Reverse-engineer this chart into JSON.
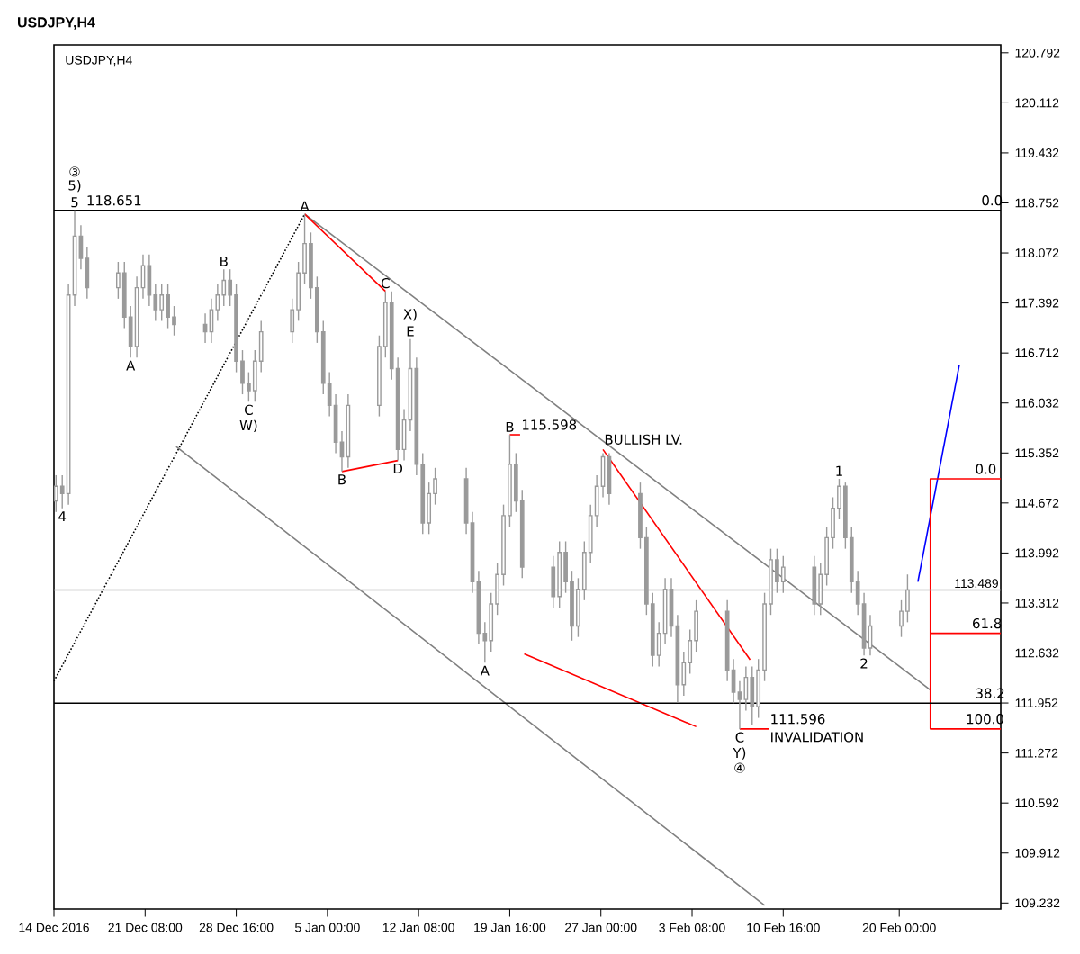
{
  "chart_data": {
    "type": "candlestick",
    "title": "USDJPY,H4",
    "color": "#9a9a9a",
    "x": [
      "2016-12-14T04:00",
      "2016-12-14T16:00",
      "2016-12-15T04:00",
      "2016-12-15T16:00",
      "2016-12-16T04:00",
      "2016-12-16T16:00",
      "2016-12-19T04:00",
      "2016-12-19T16:00",
      "2016-12-20T04:00",
      "2016-12-20T16:00",
      "2016-12-21T04:00",
      "2016-12-21T16:00",
      "2016-12-22T04:00",
      "2016-12-22T16:00",
      "2016-12-23T04:00",
      "2016-12-23T16:00",
      "2016-12-26T04:00",
      "2016-12-26T16:00",
      "2016-12-27T04:00",
      "2016-12-27T16:00",
      "2016-12-28T04:00",
      "2016-12-28T16:00",
      "2016-12-29T04:00",
      "2016-12-29T16:00",
      "2016-12-30T04:00",
      "2016-12-30T16:00",
      "2017-01-02T04:00",
      "2017-01-02T16:00",
      "2017-01-03T04:00",
      "2017-01-03T16:00",
      "2017-01-04T04:00",
      "2017-01-04T16:00",
      "2017-01-05T04:00",
      "2017-01-05T16:00",
      "2017-01-06T04:00",
      "2017-01-06T16:00",
      "2017-01-09T04:00",
      "2017-01-09T16:00",
      "2017-01-10T04:00",
      "2017-01-10T16:00",
      "2017-01-11T04:00",
      "2017-01-11T16:00",
      "2017-01-12T04:00",
      "2017-01-12T16:00",
      "2017-01-13T04:00",
      "2017-01-13T16:00",
      "2017-01-16T04:00",
      "2017-01-16T16:00",
      "2017-01-17T04:00",
      "2017-01-17T16:00",
      "2017-01-18T04:00",
      "2017-01-18T16:00",
      "2017-01-19T04:00",
      "2017-01-19T16:00",
      "2017-01-20T04:00",
      "2017-01-20T16:00",
      "2017-01-23T04:00",
      "2017-01-23T16:00",
      "2017-01-24T04:00",
      "2017-01-24T16:00",
      "2017-01-25T04:00",
      "2017-01-25T16:00",
      "2017-01-26T04:00",
      "2017-01-26T16:00",
      "2017-01-27T04:00",
      "2017-01-27T16:00",
      "2017-01-30T04:00",
      "2017-01-30T16:00",
      "2017-01-31T04:00",
      "2017-01-31T16:00",
      "2017-02-01T04:00",
      "2017-02-01T16:00",
      "2017-02-02T04:00",
      "2017-02-02T16:00",
      "2017-02-03T04:00",
      "2017-02-03T16:00",
      "2017-02-06T04:00",
      "2017-02-06T16:00",
      "2017-02-07T04:00",
      "2017-02-07T16:00",
      "2017-02-08T04:00",
      "2017-02-08T16:00",
      "2017-02-09T04:00",
      "2017-02-09T16:00",
      "2017-02-10T04:00",
      "2017-02-10T16:00",
      "2017-02-13T04:00",
      "2017-02-13T16:00",
      "2017-02-14T04:00",
      "2017-02-14T16:00",
      "2017-02-15T04:00",
      "2017-02-15T16:00",
      "2017-02-16T04:00",
      "2017-02-16T16:00",
      "2017-02-17T04:00",
      "2017-02-17T16:00",
      "2017-02-20T04:00",
      "2017-02-20T16:00"
    ],
    "ohlc": [
      [
        114.7,
        115.05,
        114.55,
        114.9
      ],
      [
        114.9,
        115.05,
        114.6,
        114.8
      ],
      [
        114.8,
        117.65,
        114.65,
        117.5
      ],
      [
        117.5,
        118.651,
        117.35,
        118.3
      ],
      [
        118.3,
        118.45,
        117.85,
        118.0
      ],
      [
        118.0,
        118.15,
        117.45,
        117.6
      ],
      [
        117.6,
        117.95,
        117.45,
        117.8
      ],
      [
        117.8,
        117.95,
        117.05,
        117.2
      ],
      [
        117.2,
        117.35,
        116.65,
        116.8
      ],
      [
        116.8,
        117.75,
        116.65,
        117.6
      ],
      [
        117.6,
        118.05,
        117.45,
        117.9
      ],
      [
        117.9,
        118.05,
        117.35,
        117.5
      ],
      [
        117.5,
        117.65,
        117.15,
        117.3
      ],
      [
        117.3,
        117.65,
        117.15,
        117.5
      ],
      [
        117.5,
        117.65,
        117.05,
        117.2
      ],
      [
        117.2,
        117.35,
        116.95,
        117.1
      ],
      [
        117.1,
        117.25,
        116.85,
        117.0
      ],
      [
        117.0,
        117.45,
        116.85,
        117.3
      ],
      [
        117.3,
        117.65,
        117.15,
        117.5
      ],
      [
        117.5,
        117.85,
        117.35,
        117.7
      ],
      [
        117.7,
        117.85,
        117.35,
        117.5
      ],
      [
        117.5,
        117.65,
        116.45,
        116.6
      ],
      [
        116.6,
        116.75,
        116.15,
        116.3
      ],
      [
        116.3,
        116.45,
        116.05,
        116.2
      ],
      [
        116.2,
        116.75,
        116.05,
        116.6
      ],
      [
        116.6,
        117.15,
        116.45,
        117.0
      ],
      [
        117.0,
        117.45,
        116.85,
        117.3
      ],
      [
        117.3,
        117.95,
        117.15,
        117.8
      ],
      [
        117.8,
        118.6,
        117.65,
        118.2
      ],
      [
        118.2,
        118.35,
        117.45,
        117.6
      ],
      [
        117.6,
        117.75,
        116.85,
        117.0
      ],
      [
        117.0,
        117.15,
        116.15,
        116.3
      ],
      [
        116.3,
        116.45,
        115.85,
        116.0
      ],
      [
        116.0,
        116.15,
        115.35,
        115.5
      ],
      [
        115.5,
        115.65,
        115.1,
        115.3
      ],
      [
        115.3,
        116.15,
        115.15,
        116.0
      ],
      [
        116.0,
        116.95,
        115.85,
        116.8
      ],
      [
        116.8,
        117.55,
        116.65,
        117.4
      ],
      [
        117.4,
        117.55,
        116.35,
        116.5
      ],
      [
        116.5,
        116.65,
        115.25,
        115.4
      ],
      [
        115.4,
        115.95,
        115.25,
        115.8
      ],
      [
        115.8,
        116.9,
        115.65,
        116.5
      ],
      [
        116.5,
        116.65,
        115.05,
        115.2
      ],
      [
        115.2,
        115.35,
        114.25,
        114.4
      ],
      [
        114.4,
        114.95,
        114.25,
        114.8
      ],
      [
        114.8,
        115.15,
        114.65,
        115.0
      ],
      [
        115.0,
        115.15,
        114.25,
        114.4
      ],
      [
        114.4,
        114.55,
        113.45,
        113.6
      ],
      [
        113.6,
        113.75,
        112.75,
        112.9
      ],
      [
        112.9,
        113.05,
        112.5,
        112.8
      ],
      [
        112.8,
        113.45,
        112.65,
        113.3
      ],
      [
        113.3,
        113.85,
        113.15,
        113.7
      ],
      [
        113.7,
        114.65,
        113.55,
        114.5
      ],
      [
        114.5,
        115.598,
        114.35,
        115.2
      ],
      [
        115.2,
        115.35,
        114.55,
        114.7
      ],
      [
        114.7,
        114.85,
        113.65,
        113.8
      ],
      [
        113.8,
        113.95,
        113.25,
        113.4
      ],
      [
        113.4,
        114.15,
        113.25,
        114.0
      ],
      [
        114.0,
        114.15,
        113.45,
        113.6
      ],
      [
        113.6,
        113.75,
        112.8,
        113.0
      ],
      [
        113.0,
        113.65,
        112.85,
        113.5
      ],
      [
        113.5,
        114.15,
        113.35,
        114.0
      ],
      [
        114.0,
        114.65,
        113.85,
        114.5
      ],
      [
        114.5,
        115.05,
        114.35,
        114.9
      ],
      [
        114.9,
        115.35,
        114.75,
        115.3
      ],
      [
        115.3,
        115.35,
        114.65,
        114.8
      ],
      [
        114.8,
        114.95,
        114.05,
        114.2
      ],
      [
        114.2,
        114.35,
        113.15,
        113.3
      ],
      [
        113.3,
        113.45,
        112.45,
        112.6
      ],
      [
        112.6,
        113.05,
        112.45,
        112.9
      ],
      [
        112.9,
        113.65,
        112.75,
        113.5
      ],
      [
        113.5,
        113.65,
        112.85,
        113.0
      ],
      [
        113.0,
        113.15,
        111.96,
        112.2
      ],
      [
        112.2,
        112.65,
        112.05,
        112.5
      ],
      [
        112.5,
        112.95,
        112.35,
        112.8
      ],
      [
        112.8,
        113.35,
        112.65,
        113.2
      ],
      [
        113.2,
        113.35,
        112.25,
        112.4
      ],
      [
        112.4,
        112.55,
        111.95,
        112.1
      ],
      [
        112.1,
        112.25,
        111.596,
        112.0
      ],
      [
        112.0,
        112.45,
        111.85,
        112.3
      ],
      [
        112.3,
        112.45,
        111.65,
        111.9
      ],
      [
        111.9,
        112.55,
        111.75,
        112.4
      ],
      [
        112.4,
        113.45,
        112.25,
        113.3
      ],
      [
        113.3,
        114.05,
        113.15,
        113.9
      ],
      [
        113.9,
        114.05,
        113.45,
        113.6
      ],
      [
        113.6,
        113.95,
        113.45,
        113.8
      ],
      [
        113.8,
        113.95,
        113.15,
        113.3
      ],
      [
        113.3,
        113.85,
        113.15,
        113.7
      ],
      [
        113.7,
        114.35,
        113.55,
        114.2
      ],
      [
        114.2,
        114.75,
        114.05,
        114.6
      ],
      [
        114.6,
        115.0,
        114.45,
        114.9
      ],
      [
        114.9,
        114.95,
        114.05,
        114.2
      ],
      [
        114.2,
        114.35,
        113.45,
        113.6
      ],
      [
        113.6,
        113.75,
        113.15,
        113.3
      ],
      [
        113.3,
        113.45,
        112.6,
        112.7
      ],
      [
        112.7,
        113.15,
        112.6,
        113.0
      ],
      [
        113.0,
        113.35,
        112.85,
        113.2
      ],
      [
        113.2,
        113.7,
        113.05,
        113.489
      ]
    ],
    "series": [
      {
        "type": "line",
        "x": [
          "2016-12-14",
          "2017-01-03T04:00"
        ],
        "values": [
          112.25,
          118.6
        ],
        "color": "#000000",
        "line_style": "dotted"
      },
      {
        "type": "line",
        "x": [
          "2017-01-03T04:00",
          "2017-02-22T12:00"
        ],
        "values": [
          118.6,
          112.13
        ],
        "color": "#808080"
      },
      {
        "type": "line",
        "x": [
          "2016-12-23T20:00",
          "2017-02-09T04:00"
        ],
        "values": [
          115.44,
          109.2
        ],
        "color": "#808080"
      },
      {
        "type": "line",
        "x": [
          "2017-01-03T04:00",
          "2017-01-09T16:00"
        ],
        "values": [
          118.6,
          117.55
        ],
        "color": "#ff0000"
      },
      {
        "type": "line",
        "x": [
          "2017-01-06T04:00",
          "2017-01-10T16:00"
        ],
        "values": [
          115.1,
          115.25
        ],
        "color": "#ff0000"
      },
      {
        "type": "line",
        "x": [
          "2017-01-27T04:00",
          "2017-02-08T00:00"
        ],
        "values": [
          115.4,
          112.54
        ],
        "color": "#ff0000"
      },
      {
        "type": "line",
        "x": [
          "2017-01-20T20:00",
          "2017-02-03T16:00"
        ],
        "values": [
          112.62,
          111.63
        ],
        "color": "#ff0000"
      },
      {
        "type": "line",
        "x": [
          "2017-02-21T12:00",
          "2017-02-24T20:00"
        ],
        "values": [
          113.6,
          116.55
        ],
        "color": "#0000ff"
      },
      {
        "type": "line",
        "x": [
          "2017-02-28T04:00",
          "2017-02-22T12:00",
          "2017-02-22T12:00",
          "2017-02-28T04:00"
        ],
        "values": [
          115.0,
          115.0,
          111.6,
          111.6
        ],
        "color": "#ff0000"
      },
      {
        "type": "line",
        "x": [
          "2017-02-22T12:00",
          "2017-02-28T04:00"
        ],
        "values": [
          112.9,
          112.9
        ],
        "color": "#ff0000"
      },
      {
        "type": "line",
        "x": [
          "2017-01-19T16:00",
          "2017-01-20T12:00"
        ],
        "values": [
          115.6,
          115.6
        ],
        "color": "#ff0000"
      },
      {
        "type": "line",
        "x": [
          "2017-02-07T04:00",
          "2017-02-09T12:00"
        ],
        "values": [
          111.6,
          111.6
        ],
        "color": "#ff0000"
      }
    ],
    "xlim": [
      "2016-12-14",
      "2017-02-28T04:00"
    ],
    "ylim": [
      109.15,
      120.9
    ],
    "xticks": [
      {
        "value": "2016-12-14",
        "label": "14 Dec 2016"
      },
      {
        "value": "2016-12-21T08:00",
        "label": "21 Dec 08:00"
      },
      {
        "value": "2016-12-28T16:00",
        "label": "28 Dec 16:00"
      },
      {
        "value": "2017-01-05",
        "label": "5 Jan 00:00"
      },
      {
        "value": "2017-01-12T08:00",
        "label": "12 Jan 08:00"
      },
      {
        "value": "2017-01-19T16:00",
        "label": "19 Jan 16:00"
      },
      {
        "value": "2017-01-27",
        "label": "27 Jan 00:00"
      },
      {
        "value": "2017-02-03T08:00",
        "label": "3 Feb 08:00"
      },
      {
        "value": "2017-02-10T16:00",
        "label": "10 Feb 16:00"
      },
      {
        "value": "2017-02-20",
        "label": "20 Feb 00:00"
      }
    ],
    "yticks": [
      120.792,
      120.112,
      119.432,
      118.752,
      118.072,
      117.392,
      116.712,
      116.032,
      115.352,
      114.672,
      113.992,
      113.312,
      112.632,
      111.952,
      111.272,
      110.592,
      109.912,
      109.232
    ],
    "ref_lines": [
      {
        "axis": "y",
        "value": 118.651,
        "color": "#000000"
      },
      {
        "axis": "y",
        "value": 111.95,
        "color": "#000000"
      },
      {
        "axis": "y",
        "value": 113.489,
        "label": "113.489",
        "color": "#b0b0b0"
      }
    ],
    "annotations": [
      "USDJPY,H4",
      {
        "text": "5",
        "x": "2016-12-15T16:00",
        "y": 118.651
      },
      {
        "text": "5)",
        "x": "2016-12-15T16:00",
        "y": 118.651
      },
      {
        "text": "③",
        "x": "2016-12-15T16:00",
        "y": 118.651
      },
      {
        "text": "118.651",
        "x": "2016-12-16T12:00",
        "y": 118.651
      },
      {
        "text": "A",
        "x": "2016-12-20T04:00",
        "y": 116.65
      },
      {
        "text": "B",
        "x": "2016-12-27T16:00",
        "y": 117.85
      },
      {
        "text": "C",
        "x": "2016-12-29T16:00",
        "y": 116.05
      },
      {
        "text": "W)",
        "x": "2016-12-29T16:00",
        "y": 116.05
      },
      {
        "text": "A",
        "x": "2017-01-03T04:00",
        "y": 118.6
      },
      {
        "text": "C",
        "x": "2017-01-09T16:00",
        "y": 117.55
      },
      {
        "text": "E",
        "x": "2017-01-11T16:00",
        "y": 116.9
      },
      {
        "text": "X)",
        "x": "2017-01-11T16:00",
        "y": 116.9
      },
      {
        "text": "B",
        "x": "2017-01-06T04:00",
        "y": 115.1
      },
      {
        "text": "D",
        "x": "2017-01-10T16:00",
        "y": 115.25
      },
      {
        "text": "4",
        "x": "2016-12-14T16:00",
        "y": 114.6
      },
      {
        "text": "A",
        "x": "2017-01-17T16:00",
        "y": 112.5
      },
      {
        "text": "B",
        "x": "2017-01-19T16:00",
        "y": 115.598
      },
      {
        "text": "115.598",
        "x": "2017-01-20T12:00",
        "y": 115.6
      },
      {
        "text": "BULLISH LV.",
        "x": "2017-01-27T04:00",
        "y": 115.4
      },
      {
        "text": "1",
        "x": "2017-02-15T04:00",
        "y": 115.0
      },
      {
        "text": "2",
        "x": "2017-02-17T04:00",
        "y": 112.6
      },
      {
        "text": "C",
        "x": "2017-02-07T04:00",
        "y": 111.596
      },
      {
        "text": "Y)",
        "x": "2017-02-07T04:00",
        "y": 111.596
      },
      {
        "text": "④",
        "x": "2017-02-07T04:00",
        "y": 111.596
      },
      {
        "text": "111.596",
        "x": "2017-02-09T12:00",
        "y": 111.6
      },
      {
        "text": "INVALIDATION",
        "x": "2017-02-09T12:00",
        "y": 111.6
      },
      {
        "text": "0.0",
        "x": "2017-02-26T12:00",
        "y": 118.651
      },
      {
        "text": "38.2",
        "x": "2017-02-26T00:00",
        "y": 111.95
      },
      {
        "text": "0.0",
        "x": "2017-02-26T00:00",
        "y": 115.0
      },
      {
        "text": "61.8",
        "x": "2017-02-25T18:00",
        "y": 112.9
      },
      {
        "text": "100.0",
        "x": "2017-02-25T06:00",
        "y": 111.6
      }
    ]
  }
}
